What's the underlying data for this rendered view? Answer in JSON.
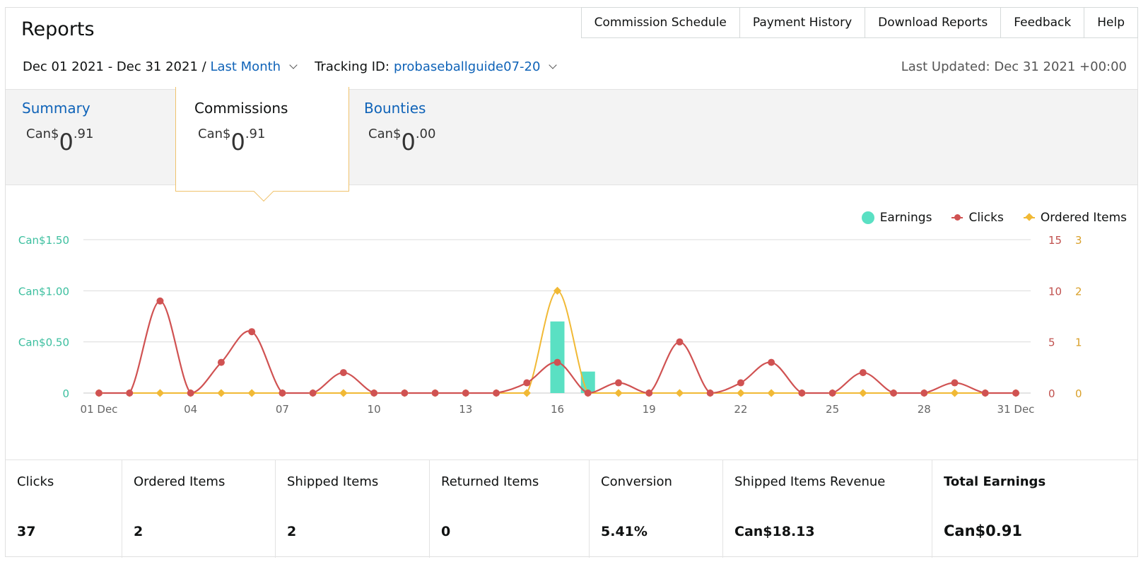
{
  "header": {
    "title": "Reports",
    "nav": [
      "Commission Schedule",
      "Payment History",
      "Download Reports",
      "Feedback",
      "Help"
    ]
  },
  "filters": {
    "date_range": "Dec 01 2021 - Dec 31 2021 /",
    "period": "Last Month",
    "tracking_label": "Tracking ID:",
    "tracking_id": "probaseballguide07-20",
    "last_updated": "Last Updated: Dec 31 2021 +00:00"
  },
  "tabs": [
    {
      "label": "Summary",
      "currency": "Can$",
      "int": "0",
      "dec": ".91"
    },
    {
      "label": "Commissions",
      "currency": "Can$",
      "int": "0",
      "dec": ".91"
    },
    {
      "label": "Bounties",
      "currency": "Can$",
      "int": "0",
      "dec": ".00"
    }
  ],
  "legend": {
    "earnings": "Earnings",
    "clicks": "Clicks",
    "ordered": "Ordered Items"
  },
  "colors": {
    "earnings": "#5ae0c3",
    "clicks": "#d05252",
    "ordered": "#f1b935",
    "link": "#0f63b8",
    "active_tab_border": "#f0c36d"
  },
  "chart_data": {
    "type": "bar",
    "x_ticks": [
      "01 Dec",
      "04",
      "07",
      "10",
      "13",
      "16",
      "19",
      "22",
      "25",
      "28",
      "31 Dec"
    ],
    "y_left_ticks": [
      "0",
      "Can$0.50",
      "Can$1.00",
      "Can$1.50"
    ],
    "y_right1_ticks": [
      "0",
      "5",
      "10",
      "15"
    ],
    "y_right2_ticks": [
      "0",
      "1",
      "2",
      "3"
    ],
    "y_left_lim": [
      0,
      1.5
    ],
    "y_right1_lim": [
      0,
      15
    ],
    "y_right2_lim": [
      0,
      3
    ],
    "days": [
      1,
      2,
      3,
      4,
      5,
      6,
      7,
      8,
      9,
      10,
      11,
      12,
      13,
      14,
      15,
      16,
      17,
      18,
      19,
      20,
      21,
      22,
      23,
      24,
      25,
      26,
      27,
      28,
      29,
      30,
      31
    ],
    "series": [
      {
        "name": "Earnings",
        "axis": "left",
        "kind": "bar",
        "values": [
          0,
          0,
          0,
          0,
          0,
          0,
          0,
          0,
          0,
          0,
          0,
          0,
          0,
          0,
          0,
          0.7,
          0.21,
          0,
          0,
          0,
          0,
          0,
          0,
          0,
          0,
          0,
          0,
          0,
          0,
          0,
          0
        ]
      },
      {
        "name": "Clicks",
        "axis": "right1",
        "kind": "line",
        "values": [
          0,
          0,
          9,
          0,
          3,
          6,
          0,
          0,
          2,
          0,
          0,
          0,
          0,
          0,
          1,
          3,
          0,
          1,
          0,
          5,
          0,
          1,
          3,
          0,
          0,
          2,
          0,
          0,
          1,
          0,
          0
        ]
      },
      {
        "name": "Ordered Items",
        "axis": "right2",
        "kind": "line",
        "values": [
          0,
          0,
          0,
          0,
          0,
          0,
          0,
          0,
          0,
          0,
          0,
          0,
          0,
          0,
          0,
          2,
          0,
          0,
          0,
          0,
          0,
          0,
          0,
          0,
          0,
          0,
          0,
          0,
          0,
          0,
          0
        ]
      }
    ]
  },
  "stats": [
    {
      "label": "Clicks",
      "value": "37"
    },
    {
      "label": "Ordered Items",
      "value": "2"
    },
    {
      "label": "Shipped Items",
      "value": "2"
    },
    {
      "label": "Returned Items",
      "value": "0"
    },
    {
      "label": "Conversion",
      "value": "5.41%"
    },
    {
      "label": "Shipped Items Revenue",
      "value": "Can$18.13"
    },
    {
      "label": "Total Earnings",
      "value": "Can$0.91"
    }
  ]
}
